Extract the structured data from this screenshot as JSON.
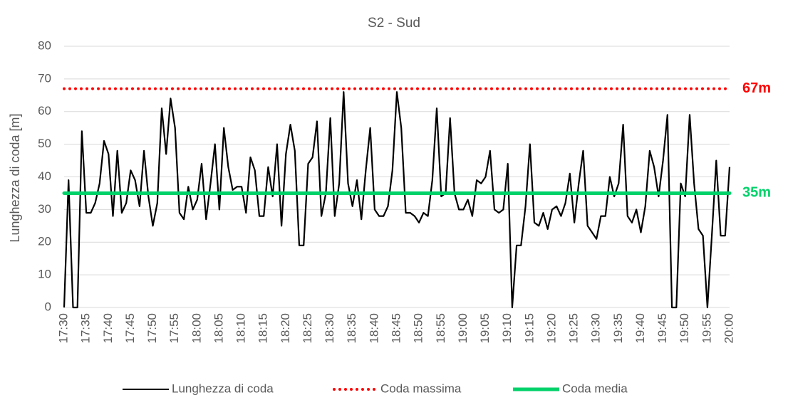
{
  "chart_data": {
    "type": "line",
    "title": "S2 - Sud",
    "y_label": "Lunghezza di coda [m]",
    "categories": [
      "17:30",
      null,
      null,
      null,
      null,
      "17:35",
      null,
      null,
      null,
      null,
      "17:40",
      null,
      null,
      null,
      null,
      "17:45",
      null,
      null,
      null,
      null,
      "17:50",
      null,
      null,
      null,
      null,
      "17:55",
      null,
      null,
      null,
      null,
      "18:00",
      null,
      null,
      null,
      null,
      "18:05",
      null,
      null,
      null,
      null,
      "18:10",
      null,
      null,
      null,
      null,
      "18:15",
      null,
      null,
      null,
      null,
      "18:20",
      null,
      null,
      null,
      null,
      "18:25",
      null,
      null,
      null,
      null,
      "18:30",
      null,
      null,
      null,
      null,
      "18:35",
      null,
      null,
      null,
      null,
      "18:40",
      null,
      null,
      null,
      null,
      "18:45",
      null,
      null,
      null,
      null,
      "18:50",
      null,
      null,
      null,
      null,
      "18:55",
      null,
      null,
      null,
      null,
      "19:00",
      null,
      null,
      null,
      null,
      "19:05",
      null,
      null,
      null,
      null,
      "19:10",
      null,
      null,
      null,
      null,
      "19:15",
      null,
      null,
      null,
      null,
      "19:20",
      null,
      null,
      null,
      null,
      "19:25",
      null,
      null,
      null,
      null,
      "19:30",
      null,
      null,
      null,
      null,
      "19:35",
      null,
      null,
      null,
      null,
      "19:40",
      null,
      null,
      null,
      null,
      "19:45",
      null,
      null,
      null,
      null,
      "19:50",
      null,
      null,
      null,
      null,
      "19:55",
      null,
      null,
      null,
      null,
      "20:00"
    ],
    "series": [
      {
        "name": "Lunghezza di coda",
        "color": "#000000",
        "values": [
          0,
          39,
          0,
          0,
          54,
          29,
          29,
          32,
          38,
          51,
          47,
          28,
          48,
          29,
          32,
          42,
          39,
          31,
          48,
          34,
          25,
          32,
          61,
          47,
          64,
          55,
          29,
          27,
          37,
          30,
          33,
          44,
          27,
          38,
          50,
          30,
          55,
          43,
          36,
          37,
          37,
          29,
          46,
          42,
          28,
          28,
          43,
          34,
          50,
          25,
          47,
          56,
          48,
          19,
          19,
          44,
          46,
          57,
          28,
          35,
          58,
          28,
          38,
          66,
          38,
          31,
          39,
          27,
          42,
          55,
          30,
          28,
          28,
          31,
          42,
          66,
          55,
          29,
          29,
          28,
          26,
          29,
          28,
          39,
          61,
          34,
          35,
          58,
          35,
          30,
          30,
          33,
          28,
          39,
          38,
          40,
          48,
          30,
          29,
          30,
          44,
          0,
          19,
          19,
          31,
          50,
          26,
          25,
          29,
          24,
          30,
          31,
          28,
          32,
          41,
          26,
          38,
          48,
          25,
          23,
          21,
          28,
          28,
          40,
          34,
          38,
          56,
          28,
          26,
          30,
          23,
          31,
          48,
          43,
          34,
          45,
          59,
          0,
          0,
          38,
          34,
          59,
          38,
          24,
          22,
          0,
          22,
          45,
          22,
          22,
          43
        ]
      },
      {
        "name": "Coda massima",
        "color": "#ff0000",
        "style": "dotted",
        "value": 67,
        "value_label": "67m"
      },
      {
        "name": "Coda media",
        "color": "#00d26a",
        "style": "solid",
        "value": 35,
        "value_label": "35m"
      }
    ],
    "ylim": [
      0,
      80
    ],
    "yticks": [
      0,
      10,
      20,
      30,
      40,
      50,
      60,
      70,
      80
    ],
    "grid": true
  }
}
